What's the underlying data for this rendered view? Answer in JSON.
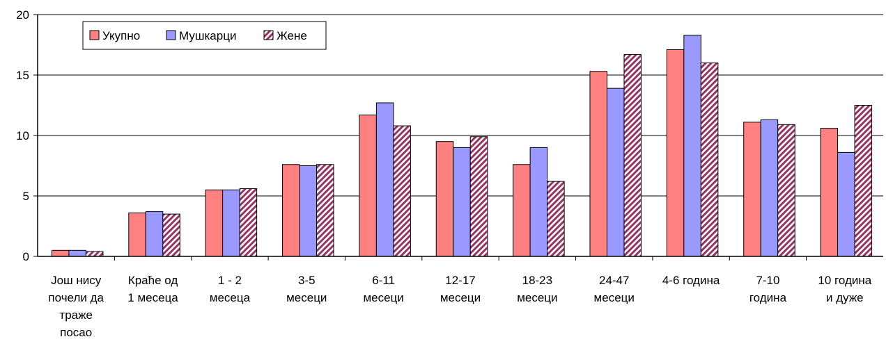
{
  "chart_data": {
    "type": "bar",
    "title": "",
    "xlabel": "",
    "ylabel": "",
    "ylim": [
      0,
      20
    ],
    "yticks": [
      "0",
      "5",
      "10",
      "15",
      "20"
    ],
    "grid": true,
    "legend_position": "top-left",
    "categories": [
      [
        "Још нису",
        "почели да",
        "траже",
        "посао"
      ],
      [
        "Краће од",
        "1 месеца"
      ],
      [
        "1 - 2",
        "месеца"
      ],
      [
        "3-5",
        "месеци"
      ],
      [
        "6-11",
        "месеци"
      ],
      [
        "12-17",
        "месеци"
      ],
      [
        "18-23",
        "месеци"
      ],
      [
        "24-47",
        "месеци"
      ],
      [
        "4-6 година"
      ],
      [
        "7-10",
        "година"
      ],
      [
        "10 година",
        "и дуже"
      ]
    ],
    "series": [
      {
        "name": "Укупно",
        "color": "#ff8080",
        "pattern": "solid",
        "values": [
          0.5,
          3.6,
          5.5,
          7.6,
          11.7,
          9.5,
          7.6,
          15.3,
          17.1,
          11.1,
          10.6
        ]
      },
      {
        "name": "Мушкарци",
        "color": "#9999ff",
        "pattern": "solid",
        "values": [
          0.5,
          3.7,
          5.5,
          7.5,
          12.7,
          9.0,
          9.0,
          13.9,
          18.3,
          11.3,
          8.6
        ]
      },
      {
        "name": "Жене",
        "color": "#993366",
        "pattern": "diagonal-stripes",
        "values": [
          0.4,
          3.5,
          5.6,
          7.6,
          10.8,
          9.9,
          6.2,
          16.7,
          16.0,
          10.9,
          12.5
        ]
      }
    ]
  }
}
